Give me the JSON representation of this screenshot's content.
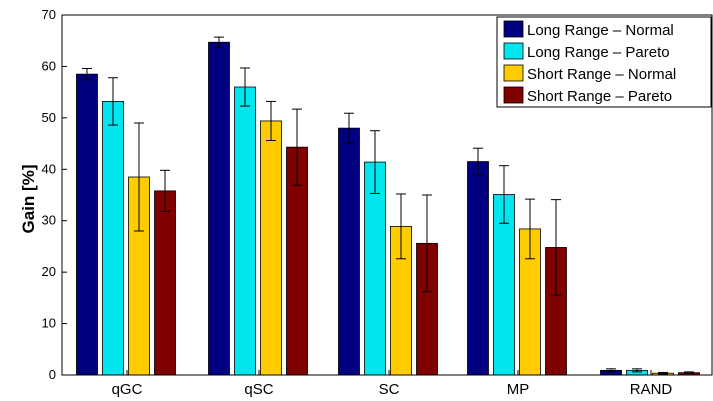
{
  "chart_data": {
    "type": "bar",
    "title": "",
    "xlabel": "",
    "ylabel": "Gain [%]",
    "ylim": [
      0,
      70
    ],
    "yticks": [
      0,
      10,
      20,
      30,
      40,
      50,
      60,
      70
    ],
    "grid": false,
    "legend_position": "top-right",
    "categories": [
      "qGC",
      "qSC",
      "SC",
      "MP",
      "RAND"
    ],
    "series": [
      {
        "name": "Long Range – Normal",
        "color": "#000080",
        "values": [
          58.5,
          64.7,
          48.0,
          41.5,
          0.9
        ],
        "errors": [
          1.1,
          1.0,
          2.9,
          2.6,
          0.3
        ]
      },
      {
        "name": "Long Range – Pareto",
        "color": "#00e5ee",
        "values": [
          53.2,
          56.0,
          41.4,
          35.1,
          0.9
        ],
        "errors": [
          4.6,
          3.7,
          6.1,
          5.6,
          0.3
        ]
      },
      {
        "name": "Short Range – Normal",
        "color": "#ffcc00",
        "values": [
          38.5,
          49.4,
          28.9,
          28.4,
          0.35
        ],
        "errors": [
          10.5,
          3.8,
          6.3,
          5.8,
          0.15
        ]
      },
      {
        "name": "Short Range – Pareto",
        "color": "#800000",
        "values": [
          35.8,
          44.3,
          25.6,
          24.8,
          0.45
        ],
        "errors": [
          4.0,
          7.4,
          9.4,
          9.3,
          0.15
        ]
      }
    ]
  }
}
